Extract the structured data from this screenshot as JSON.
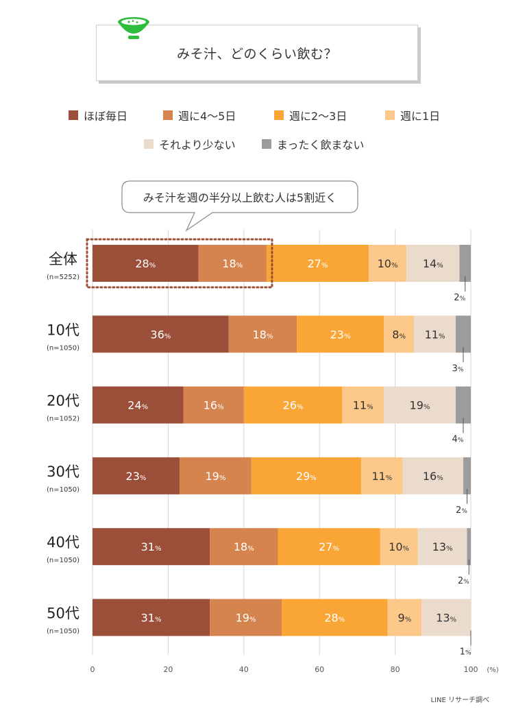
{
  "title": "みそ汁、どのくらい飲む？",
  "callout": "みそ汁を週の半分以上飲む人は5割近く",
  "source": "LINE リサーチ調べ",
  "colors": {
    "daily": "#9b4f38",
    "w45": "#d5844f",
    "w23": "#f9a636",
    "w1": "#fdc98a",
    "less": "#eadbcd",
    "never": "#9c9c9c",
    "callout_dots": "#9b4f38",
    "icon_green": "#2ebd3c"
  },
  "chart_data": {
    "type": "bar",
    "orientation": "horizontal",
    "stacked": true,
    "percent_suffix": "%",
    "axis_unit": "(%)",
    "xlim": [
      0,
      100
    ],
    "xticks": [
      0,
      20,
      40,
      60,
      80,
      100
    ],
    "series": [
      {
        "key": "daily",
        "name": "ほぼ毎日",
        "values": [
          28,
          36,
          24,
          23,
          31,
          31
        ]
      },
      {
        "key": "w45",
        "name": "週に4〜5日",
        "values": [
          18,
          18,
          16,
          19,
          18,
          19
        ]
      },
      {
        "key": "w23",
        "name": "週に2〜3日",
        "values": [
          27,
          23,
          26,
          29,
          27,
          28
        ]
      },
      {
        "key": "w1",
        "name": "週に1日",
        "values": [
          10,
          8,
          11,
          11,
          10,
          9
        ]
      },
      {
        "key": "less",
        "name": "それより少ない",
        "values": [
          14,
          11,
          19,
          16,
          13,
          13
        ]
      },
      {
        "key": "never",
        "name": "まったく飲まない",
        "values": [
          2,
          3,
          4,
          2,
          2,
          1
        ]
      }
    ],
    "categories": [
      {
        "label": "全体",
        "n": "(n=5252)"
      },
      {
        "label": "10代",
        "n": "(n=1050)"
      },
      {
        "label": "20代",
        "n": "(n=1052)"
      },
      {
        "label": "30代",
        "n": "(n=1050)"
      },
      {
        "label": "40代",
        "n": "(n=1050)"
      },
      {
        "label": "50代",
        "n": "(n=1050)"
      }
    ],
    "highlight": {
      "category": "全体",
      "series": [
        "ほぼ毎日",
        "週に4〜5日"
      ]
    }
  }
}
